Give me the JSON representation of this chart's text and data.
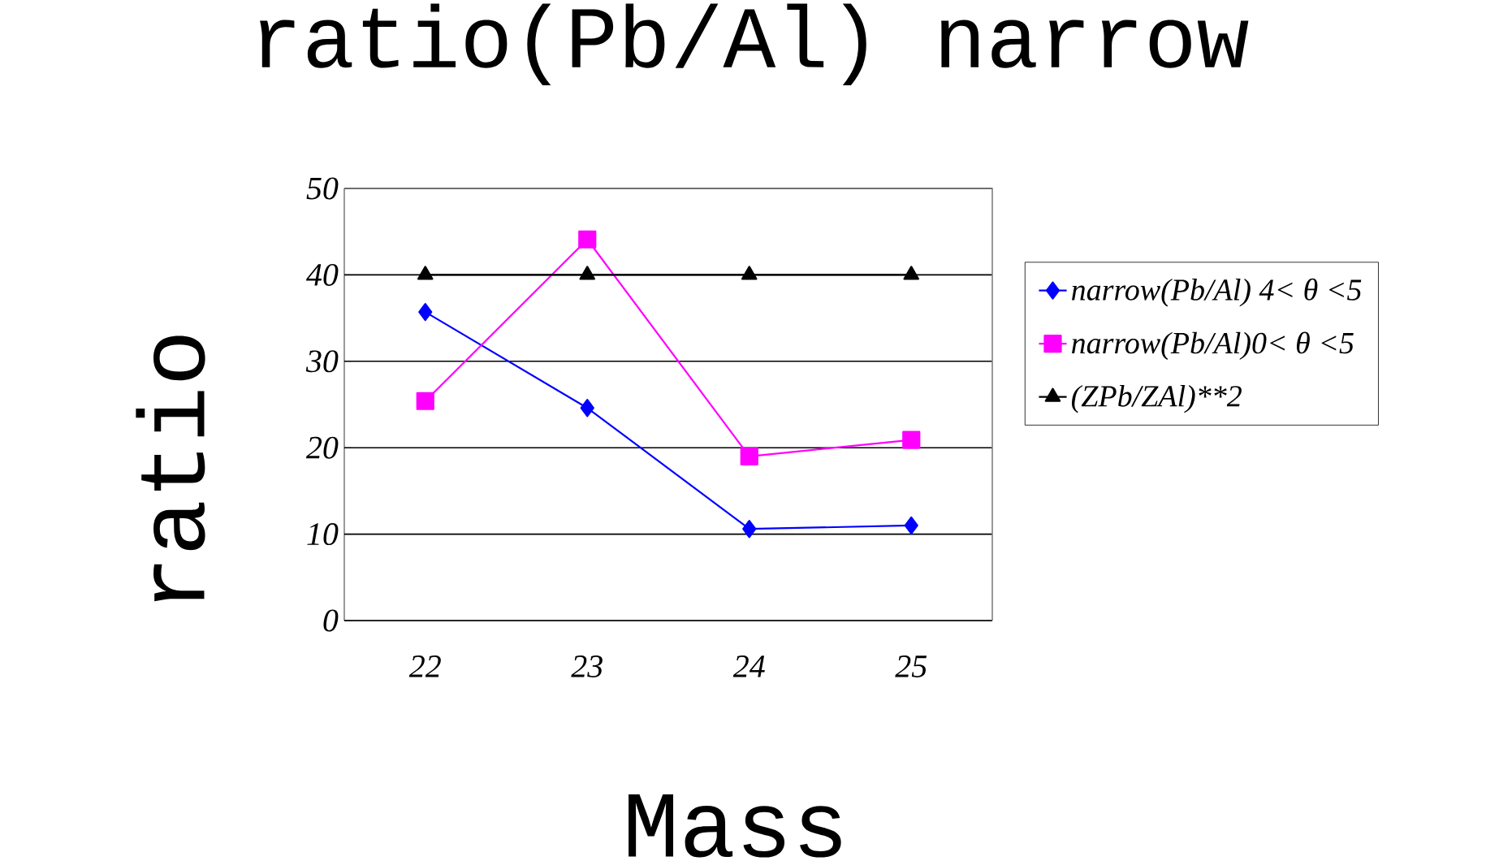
{
  "chart_data": {
    "type": "line",
    "title": "ratio(Pb/Al) narrow",
    "xlabel": "Mass",
    "ylabel": "ratio",
    "categories": [
      "22",
      "23",
      "24",
      "25"
    ],
    "series": [
      {
        "name": "narrow(Pb/Al) 4< θ <5",
        "color": "#0000ff",
        "marker": "diamond",
        "values": [
          35.7,
          24.6,
          10.6,
          11.0
        ]
      },
      {
        "name": "narrow(Pb/Al)0< θ <5",
        "color": "#ff00ff",
        "marker": "square",
        "values": [
          25.4,
          44.1,
          19.0,
          20.9
        ]
      },
      {
        "name": "(ZPb/ZAl)**2",
        "color": "#000000",
        "marker": "triangle",
        "values": [
          40,
          40,
          40,
          40
        ]
      }
    ],
    "ylim": [
      0,
      50
    ],
    "yticks": [
      0,
      10,
      20,
      30,
      40,
      50
    ],
    "grid": "y",
    "legend": "right"
  }
}
